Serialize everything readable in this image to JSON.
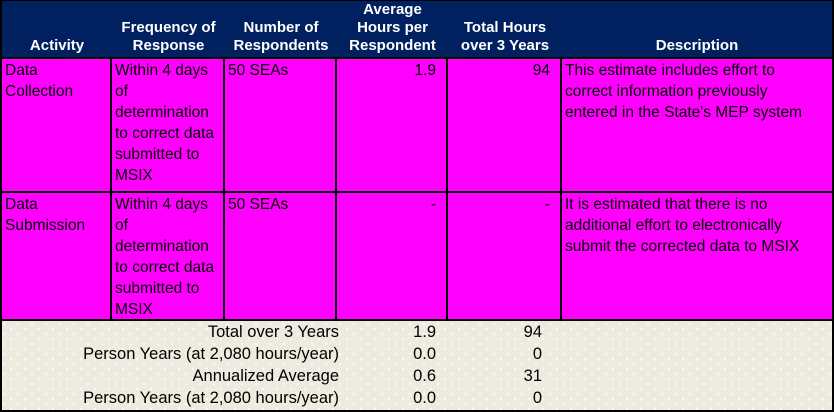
{
  "colors": {
    "header_bg": "#002060",
    "header_text": "#FFFFFF",
    "row_bg": "#FF00FF",
    "summary_bg": "#EDEADF",
    "border": "#000000"
  },
  "header": {
    "activity": "Activity",
    "frequency": "Frequency of\nResponse",
    "respondents": "Number of\nRespondents",
    "avg_hours": "Average\nHours per\nRespondent",
    "total_hours": "Total Hours\nover 3 Years",
    "description": "Description"
  },
  "rows": [
    {
      "activity": "Data\nCollection",
      "frequency": "Within 4 days\nof\ndetermination\nto correct data\nsubmitted to\nMSIX",
      "respondents": "50 SEAs",
      "avg_hours": "1.9",
      "total_hours": "94",
      "description": "This estimate includes effort to\ncorrect information previously\nentered in the State's MEP system"
    },
    {
      "activity": "Data\nSubmission",
      "frequency": "Within 4 days\nof\ndetermination\nto correct data\nsubmitted to\nMSIX",
      "respondents": "50 SEAs",
      "avg_hours": "-",
      "total_hours": "-",
      "description": "It is estimated that there is no\nadditional effort to electronically\nsubmit the corrected data to MSIX"
    }
  ],
  "summary": [
    {
      "label": "Total over 3 Years",
      "avg_hours": "1.9",
      "total_hours": "94"
    },
    {
      "label": "Person Years (at 2,080 hours/year)",
      "avg_hours": "0.0",
      "total_hours": "0"
    },
    {
      "label": "Annualized Average",
      "avg_hours": "0.6",
      "total_hours": "31"
    },
    {
      "label": "Person Years (at 2,080 hours/year)",
      "avg_hours": "0.0",
      "total_hours": "0"
    }
  ]
}
